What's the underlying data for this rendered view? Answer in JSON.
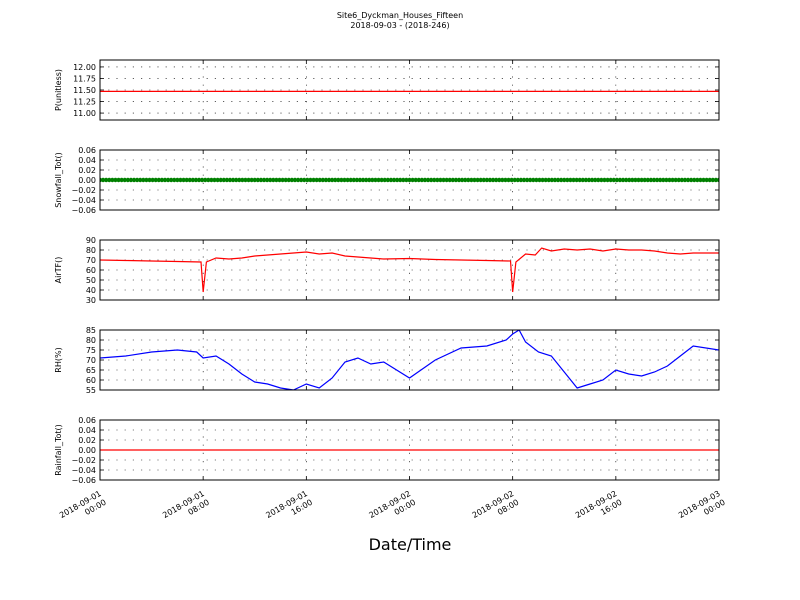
{
  "figure": {
    "title": "Site6_Dyckman_Houses_Fifteen",
    "subtitle": "2018-09-03 - (2018-246)",
    "xlabel": "Date/Time",
    "x_ticks": [
      {
        "line1": "2018-09-01",
        "line2": "00:00"
      },
      {
        "line1": "2018-09-01",
        "line2": "08:00"
      },
      {
        "line1": "2018-09-01",
        "line2": "16:00"
      },
      {
        "line1": "2018-09-02",
        "line2": "00:00"
      },
      {
        "line1": "2018-09-02",
        "line2": "08:00"
      },
      {
        "line1": "2018-09-02",
        "line2": "16:00"
      },
      {
        "line1": "2018-09-03",
        "line2": "00:00"
      }
    ]
  },
  "chart_data": [
    {
      "type": "line",
      "ylabel": "P(unitless)",
      "ylim": [
        10.85,
        12.15
      ],
      "yticks": [
        11.0,
        11.25,
        11.5,
        11.75,
        12.0
      ],
      "ytick_labels": [
        "11.00",
        "11.25",
        "11.50",
        "11.75",
        "12.00"
      ],
      "grid": true,
      "series": [
        {
          "color": "#ff0000",
          "marker": "none",
          "x": [
            "2018-09-01 00:00",
            "2018-09-03 00:00"
          ],
          "y": [
            11.47,
            11.47
          ]
        }
      ]
    },
    {
      "type": "line",
      "ylabel": "Snowfall_Tot()",
      "ylim": [
        -0.06,
        0.06
      ],
      "yticks": [
        -0.06,
        -0.04,
        -0.02,
        0.0,
        0.02,
        0.04,
        0.06
      ],
      "ytick_labels": [
        "−0.06",
        "−0.04",
        "−0.02",
        "0.00",
        "0.02",
        "0.04",
        "0.06"
      ],
      "grid": true,
      "series": [
        {
          "color": "#008000",
          "marker": "dot",
          "x": [
            "2018-09-01 00:00",
            "2018-09-03 00:00"
          ],
          "y": [
            0.0,
            0.0
          ]
        }
      ]
    },
    {
      "type": "line",
      "ylabel": "AirTF()",
      "ylim": [
        30,
        90
      ],
      "yticks": [
        30,
        40,
        50,
        60,
        70,
        80,
        90
      ],
      "ytick_labels": [
        "30",
        "40",
        "50",
        "60",
        "70",
        "80",
        "90"
      ],
      "grid": true,
      "series": [
        {
          "color": "#ff0000",
          "marker": "none",
          "x": [
            "2018-09-01 00:00",
            "2018-09-01 02:00",
            "2018-09-01 04:00",
            "2018-09-01 06:00",
            "2018-09-01 07:50",
            "2018-09-01 08:00",
            "2018-09-01 08:15",
            "2018-09-01 09:00",
            "2018-09-01 10:00",
            "2018-09-01 11:00",
            "2018-09-01 12:00",
            "2018-09-01 13:00",
            "2018-09-01 14:00",
            "2018-09-01 15:00",
            "2018-09-01 16:00",
            "2018-09-01 17:00",
            "2018-09-01 18:00",
            "2018-09-01 19:00",
            "2018-09-01 20:00",
            "2018-09-01 22:00",
            "2018-09-02 00:00",
            "2018-09-02 02:00",
            "2018-09-02 04:00",
            "2018-09-02 06:00",
            "2018-09-02 07:50",
            "2018-09-02 08:00",
            "2018-09-02 08:15",
            "2018-09-02 09:00",
            "2018-09-02 09:45",
            "2018-09-02 10:15",
            "2018-09-02 11:00",
            "2018-09-02 12:00",
            "2018-09-02 13:00",
            "2018-09-02 14:00",
            "2018-09-02 15:00",
            "2018-09-02 16:00",
            "2018-09-02 17:00",
            "2018-09-02 18:00",
            "2018-09-02 19:00",
            "2018-09-02 20:00",
            "2018-09-02 21:00",
            "2018-09-02 22:00",
            "2018-09-03 00:00"
          ],
          "y": [
            70,
            69.5,
            69,
            68.5,
            68,
            38,
            68,
            72,
            71,
            72,
            74,
            75,
            76,
            77,
            78,
            76,
            77,
            74,
            73,
            71,
            71.5,
            70.5,
            70,
            69.5,
            69,
            38,
            68,
            76,
            75,
            82,
            79,
            81,
            80,
            81,
            79,
            81,
            80,
            80,
            79,
            77,
            76,
            77,
            77
          ]
        }
      ]
    },
    {
      "type": "line",
      "ylabel": "RH(%)",
      "ylim": [
        55,
        85
      ],
      "yticks": [
        55,
        60,
        65,
        70,
        75,
        80,
        85
      ],
      "ytick_labels": [
        "55",
        "60",
        "65",
        "70",
        "75",
        "80",
        "85"
      ],
      "grid": true,
      "series": [
        {
          "color": "#0000ff",
          "marker": "none",
          "x": [
            "2018-09-01 00:00",
            "2018-09-01 02:00",
            "2018-09-01 04:00",
            "2018-09-01 06:00",
            "2018-09-01 07:30",
            "2018-09-01 08:00",
            "2018-09-01 09:00",
            "2018-09-01 10:00",
            "2018-09-01 11:00",
            "2018-09-01 12:00",
            "2018-09-01 13:00",
            "2018-09-01 14:00",
            "2018-09-01 15:00",
            "2018-09-01 16:00",
            "2018-09-01 17:00",
            "2018-09-01 18:00",
            "2018-09-01 19:00",
            "2018-09-01 20:00",
            "2018-09-01 21:00",
            "2018-09-01 22:00",
            "2018-09-02 00:00",
            "2018-09-02 02:00",
            "2018-09-02 04:00",
            "2018-09-02 06:00",
            "2018-09-02 07:30",
            "2018-09-02 08:00",
            "2018-09-02 08:30",
            "2018-09-02 09:00",
            "2018-09-02 10:00",
            "2018-09-02 11:00",
            "2018-09-02 12:00",
            "2018-09-02 13:00",
            "2018-09-02 14:00",
            "2018-09-02 15:00",
            "2018-09-02 16:00",
            "2018-09-02 17:00",
            "2018-09-02 18:00",
            "2018-09-02 19:00",
            "2018-09-02 20:00",
            "2018-09-02 21:00",
            "2018-09-02 22:00",
            "2018-09-03 00:00"
          ],
          "y": [
            71,
            72,
            74,
            75,
            74,
            71,
            72,
            68,
            63,
            59,
            58,
            56,
            55,
            58,
            56,
            61,
            69,
            71,
            68,
            69,
            61,
            70,
            76,
            77,
            80,
            83,
            85,
            79,
            74,
            72,
            64,
            56,
            58,
            60,
            65,
            63,
            62,
            64,
            67,
            72,
            77,
            75
          ]
        }
      ]
    },
    {
      "type": "line",
      "ylabel": "Rainfall_Tot()",
      "ylim": [
        -0.06,
        0.06
      ],
      "yticks": [
        -0.06,
        -0.04,
        -0.02,
        0.0,
        0.02,
        0.04,
        0.06
      ],
      "ytick_labels": [
        "−0.06",
        "−0.04",
        "−0.02",
        "0.00",
        "0.02",
        "0.04",
        "0.06"
      ],
      "grid": true,
      "series": [
        {
          "color": "#ff0000",
          "marker": "none",
          "x": [
            "2018-09-01 00:00",
            "2018-09-03 00:00"
          ],
          "y": [
            0.0,
            0.0
          ]
        }
      ]
    }
  ]
}
